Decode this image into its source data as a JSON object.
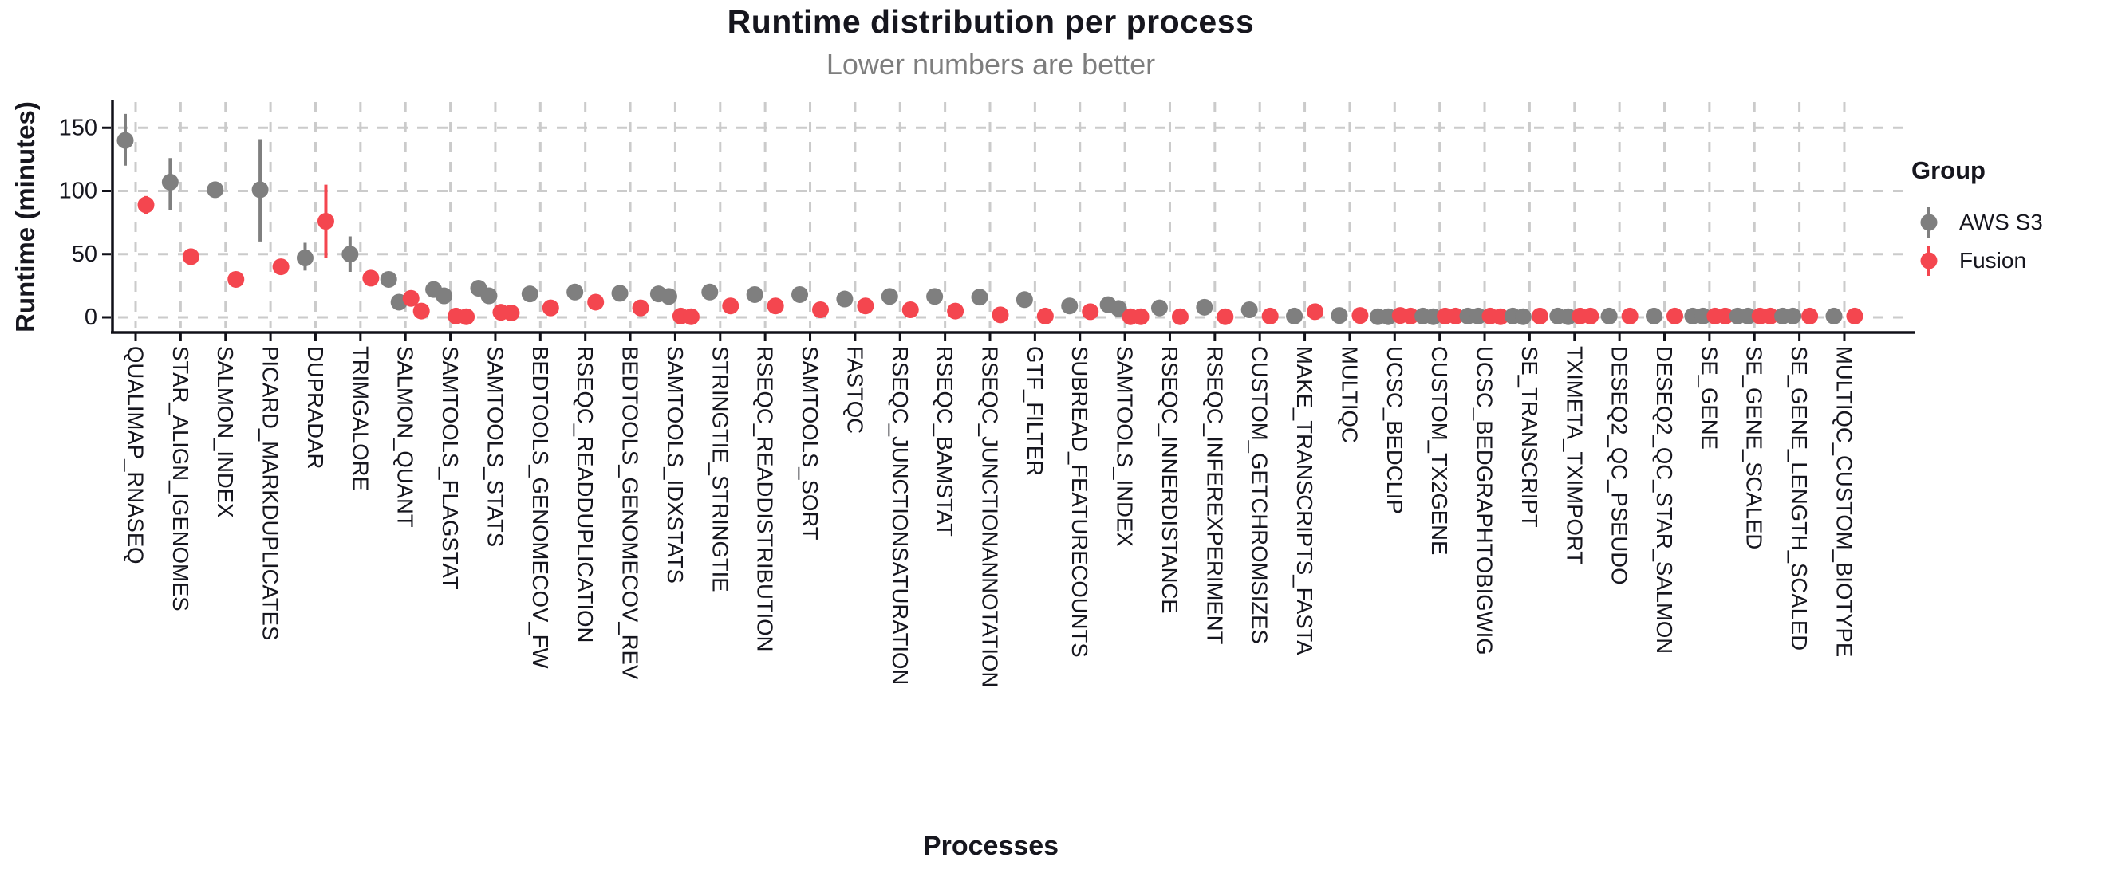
{
  "title": "Runtime distribution per process",
  "subtitle": "Lower numbers are better",
  "x_axis_title": "Processes",
  "y_axis_title": "Runtime (minutes)",
  "legend": {
    "title": "Group",
    "items": [
      {
        "label": "AWS S3",
        "color": "#7F7F7F"
      },
      {
        "label": "Fusion",
        "color": "#F4464F"
      }
    ]
  },
  "colors": {
    "aws_gray": "#7F7F7F",
    "fusion_red": "#F4464F",
    "text": "#16161E",
    "grid": "#CBCBCB",
    "axis": "#101018",
    "subtitle_gray": "#7E7E7E"
  },
  "chart_data": {
    "type": "scatter",
    "title": "Runtime distribution per process",
    "subtitle": "Lower numbers are better",
    "xlabel": "Processes",
    "ylabel": "Runtime (minutes)",
    "y_ticks": [
      0,
      50,
      100,
      150
    ],
    "ylim": [
      -8,
      172
    ],
    "grid": "dashed",
    "legend_position": "right",
    "series_names": [
      "AWS S3",
      "Fusion"
    ],
    "point_style": "pointrange (dot with min-max whisker), dodged by group",
    "processes": [
      {
        "name": "QUALIMAP_RNASEQ",
        "aws": {
          "values": [
            140
          ],
          "range": [
            120,
            161
          ]
        },
        "fusion": {
          "values": [
            89
          ],
          "range": [
            82,
            96
          ]
        }
      },
      {
        "name": "STAR_ALIGN_IGENOMES",
        "aws": {
          "values": [
            107
          ],
          "range": [
            85,
            126
          ]
        },
        "fusion": {
          "values": [
            48
          ],
          "range": null
        }
      },
      {
        "name": "SALMON_INDEX",
        "aws": {
          "values": [
            101
          ],
          "range": null
        },
        "fusion": {
          "values": [
            30
          ],
          "range": null
        }
      },
      {
        "name": "PICARD_MARKDUPLICATES",
        "aws": {
          "values": [
            101
          ],
          "range": [
            60,
            141
          ]
        },
        "fusion": {
          "values": [
            40
          ],
          "range": null
        }
      },
      {
        "name": "DUPRADAR",
        "aws": {
          "values": [
            47
          ],
          "range": [
            37,
            59
          ]
        },
        "fusion": {
          "values": [
            76
          ],
          "range": [
            47,
            105
          ]
        }
      },
      {
        "name": "TRIMGALORE",
        "aws": {
          "values": [
            50
          ],
          "range": [
            36,
            64
          ]
        },
        "fusion": {
          "values": [
            31
          ],
          "range": null
        }
      },
      {
        "name": "SALMON_QUANT",
        "aws": {
          "values": [
            30,
            12
          ],
          "range": null
        },
        "fusion": {
          "values": [
            15,
            5
          ],
          "range": null
        }
      },
      {
        "name": "SAMTOOLS_FLAGSTAT",
        "aws": {
          "values": [
            22,
            17
          ],
          "range": null
        },
        "fusion": {
          "values": [
            1,
            0.5
          ],
          "range": null
        }
      },
      {
        "name": "SAMTOOLS_STATS",
        "aws": {
          "values": [
            23,
            17
          ],
          "range": [
            19,
            27
          ]
        },
        "fusion": {
          "values": [
            4,
            3.5
          ],
          "range": null
        }
      },
      {
        "name": "BEDTOOLS_GENOMECOV_FW",
        "aws": {
          "values": [
            18.5
          ],
          "range": null
        },
        "fusion": {
          "values": [
            7.5
          ],
          "range": null
        }
      },
      {
        "name": "RSEQC_READDUPLICATION",
        "aws": {
          "values": [
            20
          ],
          "range": null
        },
        "fusion": {
          "values": [
            12
          ],
          "range": null
        }
      },
      {
        "name": "BEDTOOLS_GENOMECOV_REV",
        "aws": {
          "values": [
            19
          ],
          "range": null
        },
        "fusion": {
          "values": [
            7.5
          ],
          "range": null
        }
      },
      {
        "name": "SAMTOOLS_IDXSTATS",
        "aws": {
          "values": [
            18.5,
            16.5
          ],
          "range": null
        },
        "fusion": {
          "values": [
            1,
            0.5
          ],
          "range": null
        }
      },
      {
        "name": "STRINGTIE_STRINGTIE",
        "aws": {
          "values": [
            20
          ],
          "range": null
        },
        "fusion": {
          "values": [
            9
          ],
          "range": null
        }
      },
      {
        "name": "RSEQC_READDISTRIBUTION",
        "aws": {
          "values": [
            18
          ],
          "range": null
        },
        "fusion": {
          "values": [
            9
          ],
          "range": null
        }
      },
      {
        "name": "SAMTOOLS_SORT",
        "aws": {
          "values": [
            18
          ],
          "range": [
            13,
            22
          ]
        },
        "fusion": {
          "values": [
            6
          ],
          "range": null
        }
      },
      {
        "name": "FASTQC",
        "aws": {
          "values": [
            14.5
          ],
          "range": null
        },
        "fusion": {
          "values": [
            9
          ],
          "range": null
        }
      },
      {
        "name": "RSEQC_JUNCTIONSATURATION",
        "aws": {
          "values": [
            16.5
          ],
          "range": null
        },
        "fusion": {
          "values": [
            6
          ],
          "range": null
        }
      },
      {
        "name": "RSEQC_BAMSTAT",
        "aws": {
          "values": [
            16.5
          ],
          "range": null
        },
        "fusion": {
          "values": [
            5
          ],
          "range": null
        }
      },
      {
        "name": "RSEQC_JUNCTIONANNOTATION",
        "aws": {
          "values": [
            16
          ],
          "range": null
        },
        "fusion": {
          "values": [
            2
          ],
          "range": null
        }
      },
      {
        "name": "GTF_FILTER",
        "aws": {
          "values": [
            14
          ],
          "range": null
        },
        "fusion": {
          "values": [
            1
          ],
          "range": null
        }
      },
      {
        "name": "SUBREAD_FEATURECOUNTS",
        "aws": {
          "values": [
            9
          ],
          "range": null
        },
        "fusion": {
          "values": [
            4.5
          ],
          "range": null
        }
      },
      {
        "name": "SAMTOOLS_INDEX",
        "aws": {
          "values": [
            10,
            7
          ],
          "range": null
        },
        "fusion": {
          "values": [
            0.5,
            0.5
          ],
          "range": null
        }
      },
      {
        "name": "RSEQC_INNERDISTANCE",
        "aws": {
          "values": [
            7.5
          ],
          "range": null
        },
        "fusion": {
          "values": [
            0.5
          ],
          "range": null
        }
      },
      {
        "name": "RSEQC_INFEREXPERIMENT",
        "aws": {
          "values": [
            8
          ],
          "range": null
        },
        "fusion": {
          "values": [
            0.5
          ],
          "range": null
        }
      },
      {
        "name": "CUSTOM_GETCHROMSIZES",
        "aws": {
          "values": [
            6
          ],
          "range": null
        },
        "fusion": {
          "values": [
            1
          ],
          "range": null
        }
      },
      {
        "name": "MAKE_TRANSCRIPTS_FASTA",
        "aws": {
          "values": [
            1
          ],
          "range": null
        },
        "fusion": {
          "values": [
            4.5
          ],
          "range": null
        }
      },
      {
        "name": "MULTIQC",
        "aws": {
          "values": [
            1.5
          ],
          "range": null
        },
        "fusion": {
          "values": [
            1.5
          ],
          "range": null
        }
      },
      {
        "name": "UCSC_BEDCLIP",
        "aws": {
          "values": [
            0.5,
            0.5
          ],
          "range": null
        },
        "fusion": {
          "values": [
            1.5,
            1
          ],
          "range": null
        }
      },
      {
        "name": "CUSTOM_TX2GENE",
        "aws": {
          "values": [
            1,
            0.5
          ],
          "range": null
        },
        "fusion": {
          "values": [
            1,
            1
          ],
          "range": null
        }
      },
      {
        "name": "UCSC_BEDGRAPHTOBIGWIG",
        "aws": {
          "values": [
            1,
            1
          ],
          "range": null
        },
        "fusion": {
          "values": [
            1,
            0.5
          ],
          "range": null
        }
      },
      {
        "name": "SE_TRANSCRIPT",
        "aws": {
          "values": [
            1,
            0.5
          ],
          "range": null
        },
        "fusion": {
          "values": [
            1
          ],
          "range": null
        }
      },
      {
        "name": "TXIMETA_TXIMPORT",
        "aws": {
          "values": [
            1,
            0.5
          ],
          "range": null
        },
        "fusion": {
          "values": [
            1,
            1
          ],
          "range": null
        }
      },
      {
        "name": "DESEQ2_QC_PSEUDO",
        "aws": {
          "values": [
            1
          ],
          "range": null
        },
        "fusion": {
          "values": [
            1
          ],
          "range": null
        }
      },
      {
        "name": "DESEQ2_QC_STAR_SALMON",
        "aws": {
          "values": [
            1
          ],
          "range": null
        },
        "fusion": {
          "values": [
            1
          ],
          "range": null
        }
      },
      {
        "name": "SE_GENE",
        "aws": {
          "values": [
            1,
            1
          ],
          "range": null
        },
        "fusion": {
          "values": [
            1,
            1
          ],
          "range": null
        }
      },
      {
        "name": "SE_GENE_SCALED",
        "aws": {
          "values": [
            1,
            1
          ],
          "range": null
        },
        "fusion": {
          "values": [
            1,
            1
          ],
          "range": null
        }
      },
      {
        "name": "SE_GENE_LENGTH_SCALED",
        "aws": {
          "values": [
            1,
            1
          ],
          "range": null
        },
        "fusion": {
          "values": [
            1
          ],
          "range": null
        }
      },
      {
        "name": "MULTIQC_CUSTOM_BIOTYPE",
        "aws": {
          "values": [
            1
          ],
          "range": null
        },
        "fusion": {
          "values": [
            1
          ],
          "range": null
        }
      }
    ]
  }
}
